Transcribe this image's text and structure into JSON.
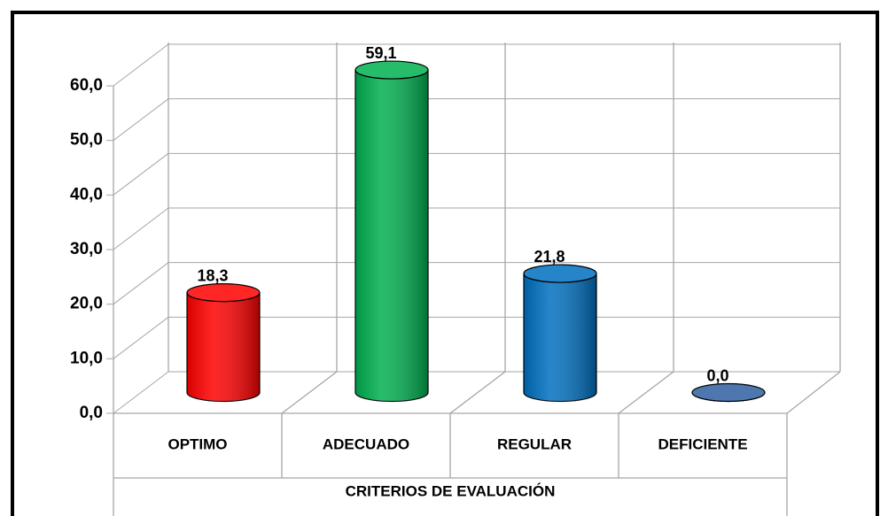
{
  "chart_data": {
    "type": "bar3d",
    "x_label": "CRITERIOS DE EVALUACIÓN",
    "categories": [
      "OPTIMO",
      "ADECUADO",
      "REGULAR",
      "DEFICIENTE"
    ],
    "values": [
      18.3,
      59.1,
      21.8,
      0.0
    ],
    "value_labels": [
      "18,3",
      "59,1",
      "21,8",
      "0,0"
    ],
    "colors": [
      "#ff0000",
      "#00b050",
      "#0070c0",
      "#2e5fa0"
    ],
    "ylim": [
      0,
      60
    ],
    "yticks": [
      {
        "value": 0,
        "label": "0,0"
      },
      {
        "value": 10,
        "label": "10,0"
      },
      {
        "value": 20,
        "label": "20,0"
      },
      {
        "value": 30,
        "label": "30,0"
      },
      {
        "value": 40,
        "label": "40,0"
      },
      {
        "value": 50,
        "label": "50,0"
      },
      {
        "value": 60,
        "label": "60,0"
      }
    ],
    "grid": true
  }
}
